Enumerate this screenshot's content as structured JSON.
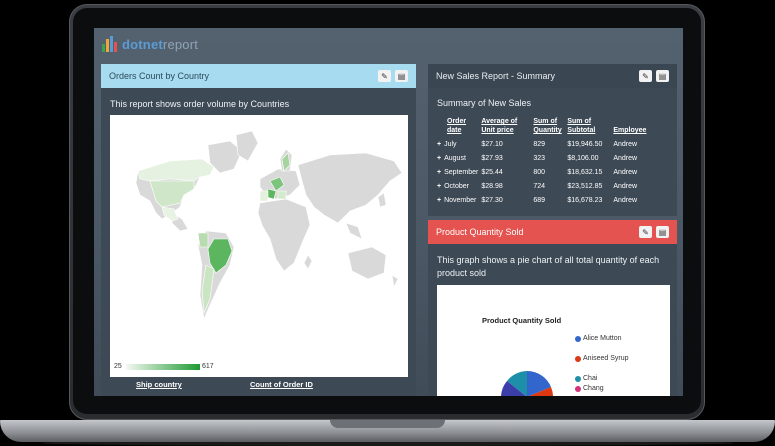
{
  "app": {
    "logo_a": "dotnet",
    "logo_b": "report",
    "colors": {
      "brand_blue": "#5b9bd5",
      "brand_bars": [
        "#3fa34d",
        "#f2a33a",
        "#5b9bd5",
        "#e4534f"
      ]
    }
  },
  "panels": {
    "orders": {
      "title": "Orders Count by Country",
      "description": "This report shows order volume by Countries",
      "legend_min": "25",
      "legend_max": "617",
      "col1": "Ship country",
      "col2": "Count of Order ID",
      "header_color": "#a7dbf0"
    },
    "summary": {
      "title": "New Sales Report - Summary",
      "subtitle": "Summary of New Sales",
      "headers": [
        "Order date",
        "Average of Unit price",
        "Sum of Quantity",
        "Sum of Subtotal",
        "Employee"
      ],
      "rows": [
        [
          "July",
          "$27.10",
          "829",
          "$19,946.50",
          "Andrew"
        ],
        [
          "August",
          "$27.93",
          "323",
          "$8,106.00",
          "Andrew"
        ],
        [
          "September",
          "$25.44",
          "800",
          "$18,632.15",
          "Andrew"
        ],
        [
          "October",
          "$28.98",
          "724",
          "$23,512.85",
          "Andrew"
        ],
        [
          "November",
          "$27.30",
          "689",
          "$16,678.23",
          "Andrew"
        ]
      ]
    },
    "product": {
      "title": "Product Quantity Sold",
      "description": "This graph shows a pie chart of all total quantity of each product sold",
      "chart_title": "Product Quantity Sold",
      "legend": [
        {
          "label": "Alice Mutton",
          "color": "#3366cc"
        },
        {
          "label": "Aniseed Syrup",
          "color": "#dc3912"
        },
        {
          "label": "Chai",
          "color": "#1e8fa8"
        },
        {
          "label": "Chang",
          "color": "#d6307a"
        }
      ],
      "header_color": "#e4534f"
    }
  },
  "icons": {
    "edit": "edit-icon",
    "export": "export-icon"
  }
}
